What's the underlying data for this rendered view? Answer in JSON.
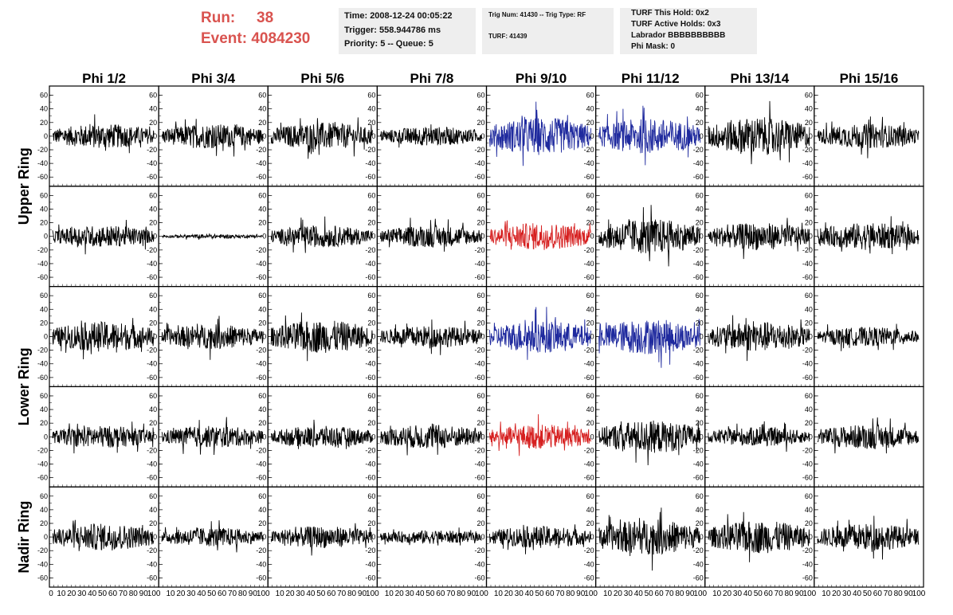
{
  "header": {
    "run_label": "Run:",
    "run_value": "38",
    "event_label": "Event:",
    "event_value": "4084230",
    "time": "Time: 2008-12-24 00:05:22",
    "trigger": "Trigger: 558.944786 ms",
    "priority": "Priority: 5 -- Queue: 5",
    "trig_num": "Trig Num: 41430 -- Trig Type: RF",
    "turf": "TURF: 41439",
    "turf_hold": "TURF This Hold: 0x2",
    "turf_active": "TURF Active Holds: 0x3",
    "labrador": "Labrador BBBBBBBBBB",
    "phi_mask": "Phi Mask: 0"
  },
  "colors": {
    "run_text": "#d9534f",
    "trace_default": "#000000",
    "trace_blue": "#1f2a9e",
    "trace_red": "#d62020",
    "info_bg": "#eeeeee"
  },
  "chart_data": {
    "type": "line",
    "columns": [
      "Phi 1/2",
      "Phi 3/4",
      "Phi 5/6",
      "Phi 7/8",
      "Phi 9/10",
      "Phi 11/12",
      "Phi 13/14",
      "Phi 15/16"
    ],
    "row_groups": [
      "Upper Ring",
      "Lower Ring",
      "Nadir Ring"
    ],
    "ylim": [
      -70,
      70
    ],
    "yticks": [
      "60",
      "40",
      "20",
      "0",
      "-20",
      "-40",
      "-60"
    ],
    "xlim": [
      0,
      100
    ],
    "xticks": [
      "0",
      "10",
      "20",
      "30",
      "40",
      "50",
      "60",
      "70",
      "80",
      "90",
      "100"
    ],
    "rows": [
      {
        "amps": [
          18,
          18,
          20,
          14,
          28,
          26,
          28,
          18
        ],
        "colors": [
          "black",
          "black",
          "black",
          "black",
          "blue",
          "blue",
          "black",
          "black"
        ]
      },
      {
        "amps": [
          16,
          3,
          16,
          16,
          20,
          26,
          20,
          20
        ],
        "colors": [
          "black",
          "black",
          "black",
          "black",
          "red",
          "black",
          "black",
          "black"
        ]
      },
      {
        "amps": [
          22,
          18,
          24,
          16,
          24,
          26,
          22,
          14
        ],
        "colors": [
          "black",
          "black",
          "black",
          "black",
          "blue",
          "blue",
          "black",
          "black"
        ]
      },
      {
        "amps": [
          16,
          16,
          16,
          18,
          18,
          24,
          14,
          18
        ],
        "colors": [
          "black",
          "black",
          "black",
          "black",
          "red",
          "black",
          "black",
          "black"
        ]
      },
      {
        "amps": [
          20,
          14,
          16,
          10,
          16,
          26,
          24,
          20
        ],
        "colors": [
          "black",
          "black",
          "black",
          "black",
          "black",
          "black",
          "black",
          "black"
        ]
      }
    ]
  }
}
